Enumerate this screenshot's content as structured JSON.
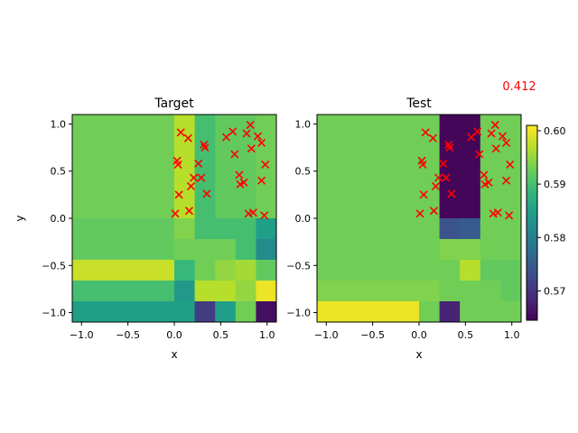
{
  "annotation": "0.412",
  "annotation_color": "#ff0000",
  "marker_color": "#ff0000",
  "chart_data": [
    {
      "type": "heatmap",
      "title": "Target",
      "xlabel": "x",
      "ylabel": "y",
      "xlim": [
        -1.1,
        1.1
      ],
      "ylim": [
        -1.1,
        1.1
      ],
      "xticks": [
        -1.0,
        -0.5,
        0.0,
        0.5,
        1.0
      ],
      "xtick_labels": [
        "−1.0",
        "−0.5",
        "0.0",
        "0.5",
        "1.0"
      ],
      "yticks": [
        -1.0,
        -0.5,
        0.0,
        0.5,
        1.0
      ],
      "ytick_labels": [
        "−1.0",
        "−0.5",
        "0.0",
        "0.5",
        "1.0"
      ],
      "x_edges": [
        -1.1,
        0.0,
        0.22,
        0.44,
        0.66,
        0.88,
        1.1
      ],
      "y_edges": [
        1.1,
        0.0,
        -0.22,
        -0.44,
        -0.66,
        -0.88,
        -1.1
      ],
      "cell_values": [
        [
          0.593,
          0.597,
          0.59,
          0.592,
          0.592,
          0.593
        ],
        [
          0.592,
          0.594,
          0.59,
          0.59,
          0.59,
          0.585
        ],
        [
          0.592,
          0.593,
          0.593,
          0.593,
          0.59,
          0.582
        ],
        [
          0.598,
          0.589,
          0.593,
          0.595,
          0.596,
          0.592
        ],
        [
          0.59,
          0.584,
          0.597,
          0.597,
          0.595,
          0.6
        ],
        [
          0.585,
          0.585,
          0.571,
          0.585,
          0.593,
          0.566
        ]
      ],
      "points": [
        [
          0.01,
          0.05
        ],
        [
          0.03,
          0.61
        ],
        [
          0.04,
          0.57
        ],
        [
          0.05,
          0.25
        ],
        [
          0.07,
          0.91
        ],
        [
          0.15,
          0.85
        ],
        [
          0.16,
          0.08
        ],
        [
          0.18,
          0.34
        ],
        [
          0.21,
          0.43
        ],
        [
          0.26,
          0.58
        ],
        [
          0.29,
          0.43
        ],
        [
          0.32,
          0.78
        ],
        [
          0.33,
          0.75
        ],
        [
          0.35,
          0.26
        ],
        [
          0.56,
          0.86
        ],
        [
          0.63,
          0.92
        ],
        [
          0.65,
          0.68
        ],
        [
          0.7,
          0.46
        ],
        [
          0.71,
          0.36
        ],
        [
          0.75,
          0.38
        ],
        [
          0.78,
          0.9
        ],
        [
          0.8,
          0.05
        ],
        [
          0.82,
          0.99
        ],
        [
          0.83,
          0.74
        ],
        [
          0.85,
          0.06
        ],
        [
          0.9,
          0.87
        ],
        [
          0.94,
          0.8
        ],
        [
          0.94,
          0.4
        ],
        [
          0.97,
          0.03
        ],
        [
          0.98,
          0.57
        ]
      ]
    },
    {
      "type": "heatmap",
      "title": "Test",
      "xlabel": "x",
      "ylabel": "",
      "xlim": [
        -1.1,
        1.1
      ],
      "ylim": [
        -1.1,
        1.1
      ],
      "xticks": [
        -1.0,
        -0.5,
        0.0,
        0.5,
        1.0
      ],
      "xtick_labels": [
        "−1.0",
        "−0.5",
        "0.0",
        "0.5",
        "1.0"
      ],
      "yticks": [
        -1.0,
        -0.5,
        0.0,
        0.5,
        1.0
      ],
      "ytick_labels": [
        "−1.0",
        "−0.5",
        "0.0",
        "0.5",
        "1.0"
      ],
      "x_edges": [
        -1.1,
        0.0,
        0.22,
        0.44,
        0.66,
        0.88,
        1.1
      ],
      "y_edges": [
        1.1,
        0.0,
        -0.22,
        -0.44,
        -0.66,
        -0.88,
        -1.1
      ],
      "cell_values": [
        [
          0.593,
          0.593,
          0.565,
          0.565,
          0.593,
          0.593
        ],
        [
          0.593,
          0.593,
          0.574,
          0.575,
          0.593,
          0.593
        ],
        [
          0.593,
          0.593,
          0.594,
          0.594,
          0.593,
          0.593
        ],
        [
          0.593,
          0.593,
          0.593,
          0.597,
          0.592,
          0.592
        ],
        [
          0.594,
          0.594,
          0.593,
          0.593,
          0.593,
          0.592
        ],
        [
          0.6,
          0.593,
          0.568,
          0.593,
          0.593,
          0.593
        ]
      ],
      "points": [
        [
          0.01,
          0.05
        ],
        [
          0.03,
          0.61
        ],
        [
          0.04,
          0.57
        ],
        [
          0.05,
          0.25
        ],
        [
          0.07,
          0.91
        ],
        [
          0.15,
          0.85
        ],
        [
          0.16,
          0.08
        ],
        [
          0.18,
          0.34
        ],
        [
          0.21,
          0.43
        ],
        [
          0.26,
          0.58
        ],
        [
          0.29,
          0.43
        ],
        [
          0.32,
          0.78
        ],
        [
          0.33,
          0.75
        ],
        [
          0.35,
          0.26
        ],
        [
          0.56,
          0.86
        ],
        [
          0.63,
          0.92
        ],
        [
          0.65,
          0.68
        ],
        [
          0.7,
          0.46
        ],
        [
          0.71,
          0.36
        ],
        [
          0.75,
          0.38
        ],
        [
          0.78,
          0.9
        ],
        [
          0.8,
          0.05
        ],
        [
          0.82,
          0.99
        ],
        [
          0.83,
          0.74
        ],
        [
          0.85,
          0.06
        ],
        [
          0.9,
          0.87
        ],
        [
          0.94,
          0.8
        ],
        [
          0.94,
          0.4
        ],
        [
          0.97,
          0.03
        ],
        [
          0.98,
          0.57
        ]
      ]
    }
  ],
  "colorbar": {
    "vmin": 0.5645,
    "vmax": 0.601,
    "ticks": [
      0.57,
      0.58,
      0.59,
      0.6
    ],
    "tick_labels": [
      "0.57",
      "0.58",
      "0.59",
      "0.60"
    ],
    "colormap": "viridis"
  }
}
